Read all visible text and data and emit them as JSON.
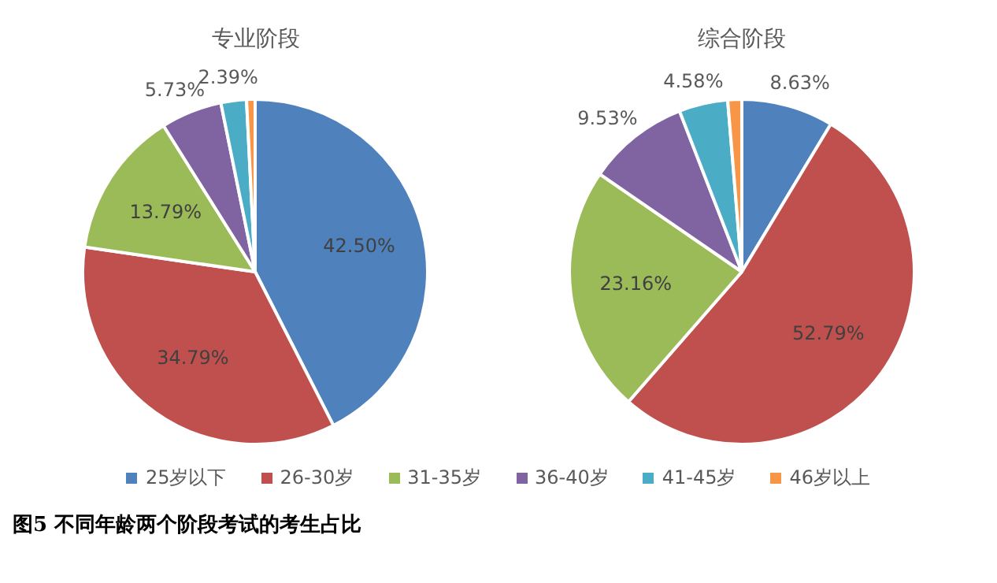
{
  "chart_data": [
    {
      "type": "pie",
      "title": "专业阶段",
      "categories": [
        "25岁以下",
        "26-30岁",
        "31-35岁",
        "36-40岁",
        "41-45岁",
        "46岁以上"
      ],
      "values": [
        42.5,
        34.79,
        13.79,
        5.73,
        2.39,
        0.8
      ],
      "value_labels": [
        "42.50%",
        "34.79%",
        "13.79%",
        "5.73%",
        "2.39%",
        null
      ],
      "colors": [
        "#4f81bd",
        "#c0504d",
        "#9bbb59",
        "#8064a2",
        "#4bacc6",
        "#f79646"
      ],
      "legend": "bottom",
      "annotations": [
        "图5  不同年龄两个阶段考试的考生占比"
      ]
    },
    {
      "type": "pie",
      "title": "综合阶段",
      "categories": [
        null,
        null,
        null,
        null,
        null,
        null
      ],
      "values": [
        8.63,
        52.79,
        23.16,
        9.53,
        4.58,
        1.31
      ],
      "value_labels": [
        "8.63%",
        "52.79%",
        "23.16%",
        "9.53%",
        "4.58%",
        null
      ],
      "colors": [
        "#4f81bd",
        "#c0504d",
        "#9bbb59",
        "#8064a2",
        "#4bacc6",
        "#f79646"
      ]
    }
  ]
}
